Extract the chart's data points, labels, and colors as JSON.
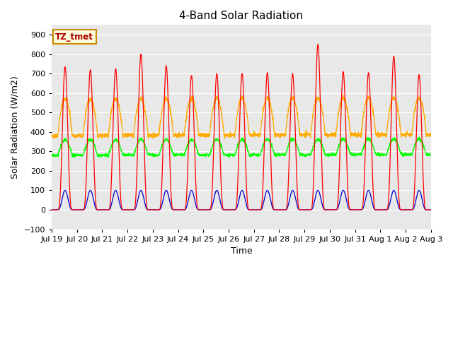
{
  "title": "4-Band Solar Radiation",
  "xlabel": "Time",
  "ylabel": "Solar Radiation (W/m2)",
  "ylim": [
    -100,
    950
  ],
  "yticks": [
    -100,
    0,
    100,
    200,
    300,
    400,
    500,
    600,
    700,
    800,
    900
  ],
  "colors": {
    "SWin": "#ff0000",
    "SWout": "#0000cc",
    "LWin": "#00ff00",
    "LWout": "#ffaa00"
  },
  "background_color": "#e8e8e8",
  "fig_background": "#ffffff",
  "label_box": {
    "text": "TZ_tmet",
    "facecolor": "#ffffdd",
    "edgecolor": "#cc8800",
    "textcolor": "#aa0000"
  },
  "n_days": 15,
  "start_day": 19,
  "SWin_peaks": [
    735,
    720,
    725,
    800,
    740,
    690,
    700,
    700,
    705,
    700,
    850,
    710,
    705,
    790,
    695
  ],
  "SWout_peaks": [
    100,
    100,
    100,
    100,
    100,
    100,
    100,
    100,
    100,
    100,
    100,
    100,
    100,
    100,
    100
  ],
  "LWin_night": 280,
  "LWin_day_amp": 80,
  "LWout_night": 380,
  "LWout_day_amp": 190
}
